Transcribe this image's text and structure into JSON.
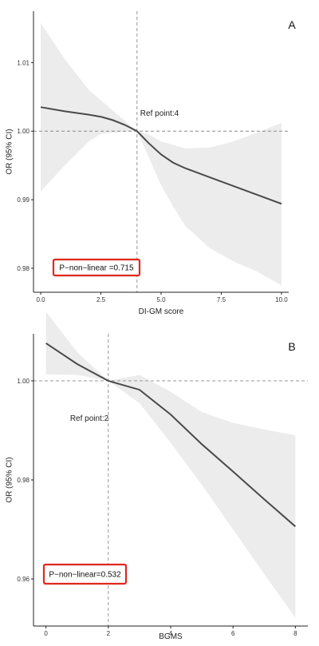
{
  "chart_data": [
    {
      "type": "line",
      "panel_label": "A",
      "xlabel": "DI-GM score",
      "ylabel": "OR (95% CI)",
      "xlim": [
        -0.3,
        10.3
      ],
      "ylim": [
        0.9765,
        1.0175
      ],
      "x_ticks": [
        0,
        2.5,
        5,
        7.5,
        10
      ],
      "x_tick_labels": [
        "0.0",
        "2.5",
        "5.0",
        "7.5",
        "10.0"
      ],
      "y_ticks": [
        0.98,
        0.99,
        1.0,
        1.01
      ],
      "y_tick_labels": [
        "0.98",
        "0.99",
        "1.00",
        "1.01"
      ],
      "ref_x": 4,
      "ref_y": 1.0,
      "ref_label": "Ref point:4",
      "p_label": "P−non−linear =0.715",
      "p_box_color": "#e0281e",
      "line_color": "#4a4a4a",
      "band_color": "#ececec",
      "series": [
        {
          "x": [
            0,
            1,
            2,
            2.5,
            3,
            3.5,
            4,
            4.5,
            5,
            5.5,
            6,
            7,
            8,
            9,
            10
          ],
          "y": [
            1.0035,
            1.0029,
            1.0024,
            1.0021,
            1.0016,
            1.0009,
            1.0,
            0.9982,
            0.9966,
            0.9954,
            0.9946,
            0.9933,
            0.992,
            0.9907,
            0.9894
          ],
          "lower": [
            0.9912,
            0.995,
            0.9985,
            0.9996,
            0.9998,
            0.9999,
            1.0,
            0.9961,
            0.9921,
            0.989,
            0.9862,
            0.983,
            0.981,
            0.9795,
            0.9775
          ],
          "upper": [
            1.0158,
            1.0105,
            1.006,
            1.0045,
            1.003,
            1.0015,
            1.0,
            0.9995,
            0.9985,
            0.998,
            0.9975,
            0.9976,
            0.9985,
            0.9998,
            1.0012
          ]
        }
      ]
    },
    {
      "type": "line",
      "panel_label": "B",
      "xlabel": "BGMS",
      "ylabel": "OR (95% CI)",
      "xlim": [
        -0.4,
        8.4
      ],
      "ylim": [
        0.9505,
        1.0095
      ],
      "x_ticks": [
        0,
        2,
        4,
        6,
        8
      ],
      "x_tick_labels": [
        "0",
        "2",
        "4",
        "6",
        "8"
      ],
      "y_ticks": [
        0.96,
        0.98,
        1.0
      ],
      "y_tick_labels": [
        "0.96",
        "0.98",
        "1.00"
      ],
      "ref_x": 2,
      "ref_y": 1.0,
      "ref_label": "Ref point:2",
      "p_label": "P−non−linear=0.532",
      "p_box_color": "#e0281e",
      "line_color": "#4a4a4a",
      "band_color": "#ececec",
      "series": [
        {
          "x": [
            0,
            1,
            2,
            3,
            4,
            5,
            6,
            7,
            8
          ],
          "y": [
            1.0076,
            1.0034,
            1.0,
            0.9982,
            0.9932,
            0.9872,
            0.9817,
            0.9761,
            0.9706
          ],
          "lower": [
            1.0013,
            1.0012,
            1.0,
            0.9955,
            0.9875,
            0.979,
            0.97,
            0.961,
            0.9522
          ],
          "upper": [
            1.014,
            1.0058,
            1.0,
            1.0012,
            0.9978,
            0.9937,
            0.9915,
            0.9902,
            0.989
          ]
        }
      ]
    }
  ]
}
